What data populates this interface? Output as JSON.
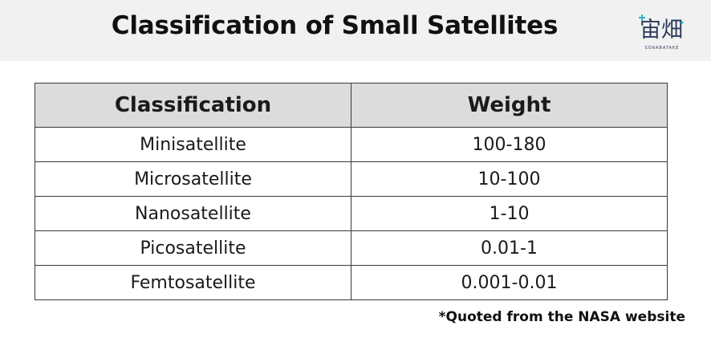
{
  "title": "Classification of Small Satellites",
  "logo": {
    "glyphs": "宙畑",
    "subtitle": "SORABATAKE",
    "icon": "sorabatake-logo"
  },
  "table": {
    "headers": [
      "Classification",
      "Weight"
    ],
    "rows": [
      [
        "Minisatellite",
        "100-180"
      ],
      [
        "Microsatellite",
        "10-100"
      ],
      [
        "Nanosatellite",
        "1-10"
      ],
      [
        "Picosatellite",
        "0.01-1"
      ],
      [
        "Femtosatellite",
        "0.001-0.01"
      ]
    ]
  },
  "footnote": "*Quoted from the NASA website",
  "colors": {
    "header_band": "#f1f1f1",
    "table_header": "#dcdcdc",
    "logo": "#2a3a5a"
  }
}
